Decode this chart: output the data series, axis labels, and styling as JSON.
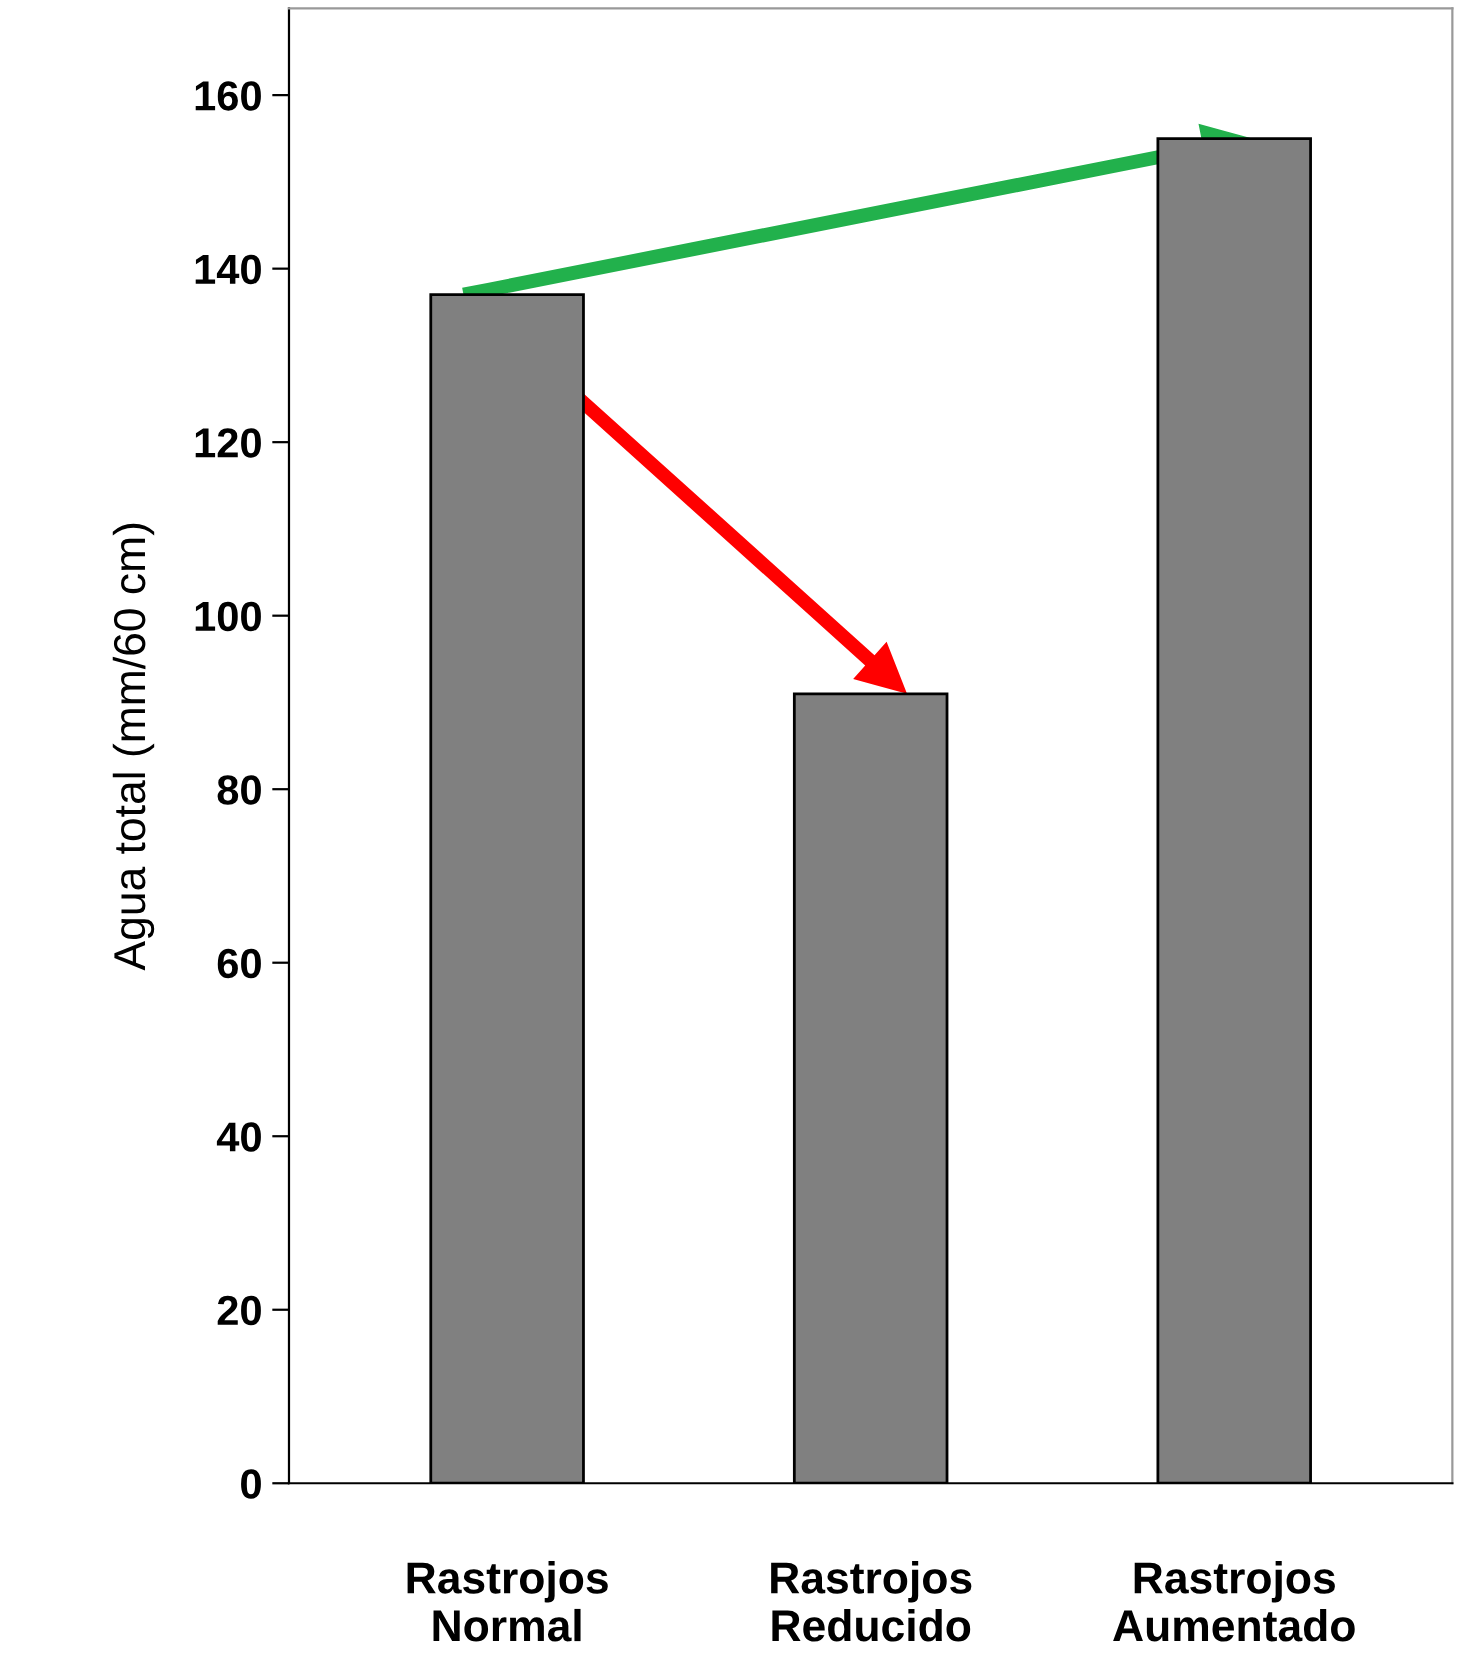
{
  "chart_data": {
    "type": "bar",
    "categories": [
      "Rastrojos\nNormal",
      "Rastrojos\nReducido",
      "Rastrojos\nAumentado"
    ],
    "values": [
      137,
      91,
      155
    ],
    "color": "#808080",
    "ylabel": "Agua total (mm/60 cm)",
    "ylim": [
      0,
      170
    ],
    "yticks": [
      0,
      20,
      40,
      60,
      80,
      100,
      120,
      140,
      160
    ],
    "grid": false,
    "legend": false
  }
}
